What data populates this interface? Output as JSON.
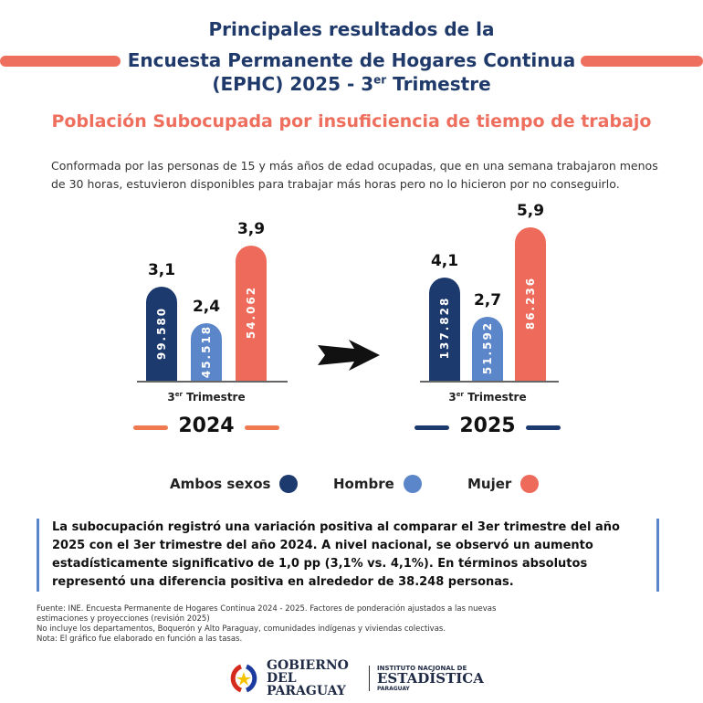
{
  "header": {
    "line1": "Principales resultados de la",
    "line2": "Encuesta Permanente de Hogares Continua",
    "line3_pre": "(EPHC) 2025 - 3",
    "line3_sup": "er",
    "line3_post": " Trimestre"
  },
  "subtitle": "Población Subocupada por insuficiencia de tiempo de trabajo",
  "description": "Conformada por las personas de 15 y más años de edad ocupadas, que en una semana trabajaron menos de 30 horas, estuvieron disponibles para trabajar más horas pero no lo hicieron por no conseguirlo.",
  "colors": {
    "ambos": "#1d3a6e",
    "hombre": "#5b86c9",
    "mujer": "#ee6b5b",
    "title": "#1f3a6a",
    "accent": "#ef6f5e"
  },
  "chart_data": [
    {
      "type": "bar",
      "year": "2024",
      "category_num": "3",
      "category_sup": "er",
      "category_text": " Trimestre",
      "series": [
        {
          "name": "Ambos sexos",
          "rate": 3.1,
          "rate_label": "3,1",
          "people_label": "99.580"
        },
        {
          "name": "Hombre",
          "rate": 2.4,
          "rate_label": "2,4",
          "people_label": "45.518"
        },
        {
          "name": "Mujer",
          "rate": 3.9,
          "rate_label": "3,9",
          "people_label": "54.062"
        }
      ]
    },
    {
      "type": "bar",
      "year": "2025",
      "category_num": "3",
      "category_sup": "er",
      "category_text": " Trimestre",
      "series": [
        {
          "name": "Ambos sexos",
          "rate": 4.1,
          "rate_label": "4,1",
          "people_label": "137.828"
        },
        {
          "name": "Hombre",
          "rate": 2.7,
          "rate_label": "2,7",
          "people_label": "51.592"
        },
        {
          "name": "Mujer",
          "rate": 5.9,
          "rate_label": "5,9",
          "people_label": "86.236"
        }
      ]
    }
  ],
  "legend": [
    {
      "label": "Ambos sexos"
    },
    {
      "label": "Hombre"
    },
    {
      "label": "Mujer"
    }
  ],
  "note": "La subocupación registró una variación positiva al comparar el 3er trimestre del año 2025 con el 3er trimestre del año 2024. A nivel nacional, se observó un aumento estadísticamente significativo de 1,0 pp (3,1% vs. 4,1%). En términos absolutos representó una diferencia positiva en alrededor de 38.248 personas.",
  "footer": [
    "Fuente: INE. Encuesta Permanente de Hogares Continua 2024 - 2025.  Factores de ponderación ajustados a las nuevas estimaciones y proyecciones (revisión 2025)",
    "No incluye los departamentos, Boquerón y Alto Paraguay, comunidades indígenas y viviendas colectivas.",
    "Nota: El gráfico fue elaborado en función a las tasas."
  ],
  "logos": {
    "gov": "GOBIERNO DEL PARAGUAY",
    "ine_top": "INSTITUTO NACIONAL DE",
    "ine_main": "ESTADÍSTICA",
    "ine_bottom": "PARAGUAY"
  }
}
